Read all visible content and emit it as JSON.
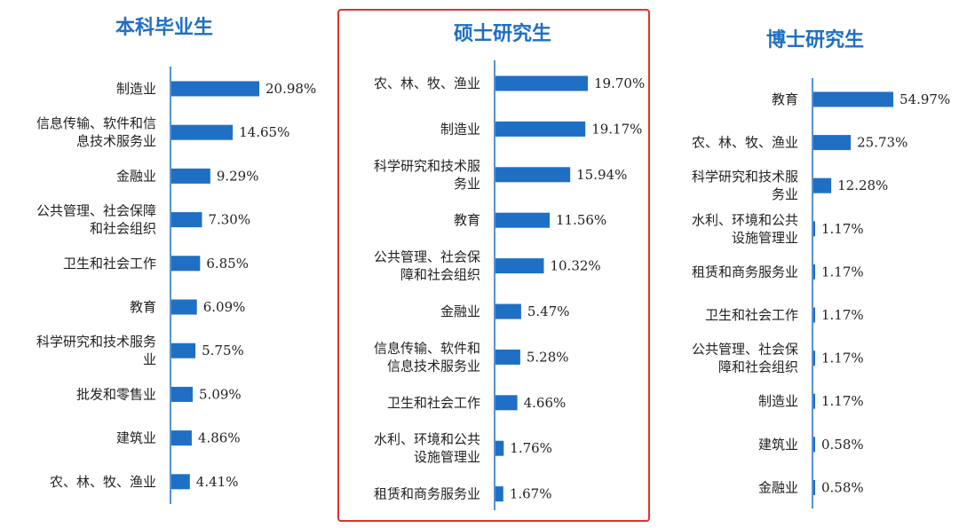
{
  "chart_data": [
    {
      "type": "bar",
      "orientation": "horizontal",
      "title": "本科毕业生",
      "categories": [
        "制造业",
        "信息传输、软件和信息技术服务业",
        "金融业",
        "公共管理、社会保障和社会组织",
        "卫生和社会工作",
        "教育",
        "科学研究和技术服务业",
        "批发和零售业",
        "建筑业",
        "农、林、牧、渔业"
      ],
      "category_lines": [
        [
          "制造业"
        ],
        [
          "信息传输、软件和信",
          "息技术服务业"
        ],
        [
          "金融业"
        ],
        [
          "公共管理、社会保障",
          "和社会组织"
        ],
        [
          "卫生和社会工作"
        ],
        [
          "教育"
        ],
        [
          "科学研究和技术服务",
          "业"
        ],
        [
          "批发和零售业"
        ],
        [
          "建筑业"
        ],
        [
          "农、林、牧、渔业"
        ]
      ],
      "values": [
        20.98,
        14.65,
        9.29,
        7.3,
        6.85,
        6.09,
        5.75,
        5.09,
        4.86,
        4.41
      ],
      "value_labels": [
        "20.98%",
        "14.65%",
        "9.29%",
        "7.30%",
        "6.85%",
        "6.09%",
        "5.75%",
        "5.09%",
        "4.86%",
        "4.41%"
      ],
      "bar_color": "#1f6fc4",
      "highlighted": false
    },
    {
      "type": "bar",
      "orientation": "horizontal",
      "title": "硕士研究生",
      "categories": [
        "农、林、牧、渔业",
        "制造业",
        "科学研究和技术服务业",
        "教育",
        "公共管理、社会保障和社会组织",
        "金融业",
        "信息传输、软件和信息技术服务业",
        "卫生和社会工作",
        "水利、环境和公共设施管理业",
        "租赁和商务服务业"
      ],
      "category_lines": [
        [
          "农、林、牧、渔业"
        ],
        [
          "制造业"
        ],
        [
          "科学研究和技术服",
          "务业"
        ],
        [
          "教育"
        ],
        [
          "公共管理、社会保",
          "障和社会组织"
        ],
        [
          "金融业"
        ],
        [
          "信息传输、软件和",
          "信息技术服务业"
        ],
        [
          "卫生和社会工作"
        ],
        [
          "水利、环境和公共",
          "设施管理业"
        ],
        [
          "租赁和商务服务业"
        ]
      ],
      "values": [
        19.7,
        19.17,
        15.94,
        11.56,
        10.32,
        5.47,
        5.28,
        4.66,
        1.76,
        1.67
      ],
      "value_labels": [
        "19.70%",
        "19.17%",
        "15.94%",
        "11.56%",
        "10.32%",
        "5.47%",
        "5.28%",
        "4.66%",
        "1.76%",
        "1.67%"
      ],
      "bar_color": "#1f6fc4",
      "highlighted": true,
      "highlight_color": "#e0312c"
    },
    {
      "type": "bar",
      "orientation": "horizontal",
      "title": "博士研究生",
      "categories": [
        "教育",
        "农、林、牧、渔业",
        "科学研究和技术服务业",
        "水利、环境和公共设施管理业",
        "租赁和商务服务业",
        "卫生和社会工作",
        "公共管理、社会保障和社会组织",
        "制造业",
        "建筑业",
        "金融业"
      ],
      "category_lines": [
        [
          "教育"
        ],
        [
          "农、林、牧、渔业"
        ],
        [
          "科学研究和技术服",
          "务业"
        ],
        [
          "水利、环境和公共",
          "设施管理业"
        ],
        [
          "租赁和商务服务业"
        ],
        [
          "卫生和社会工作"
        ],
        [
          "公共管理、社会保",
          "障和社会组织"
        ],
        [
          "制造业"
        ],
        [
          "建筑业"
        ],
        [
          "金融业"
        ]
      ],
      "values": [
        54.97,
        25.73,
        12.28,
        1.17,
        1.17,
        1.17,
        1.17,
        1.17,
        0.58,
        0.58
      ],
      "value_labels": [
        "54.97%",
        "25.73%",
        "12.28%",
        "1.17%",
        "1.17%",
        "1.17%",
        "1.17%",
        "1.17%",
        "0.58%",
        "0.58%"
      ],
      "bar_color": "#1f6fc4",
      "highlighted": false
    }
  ]
}
